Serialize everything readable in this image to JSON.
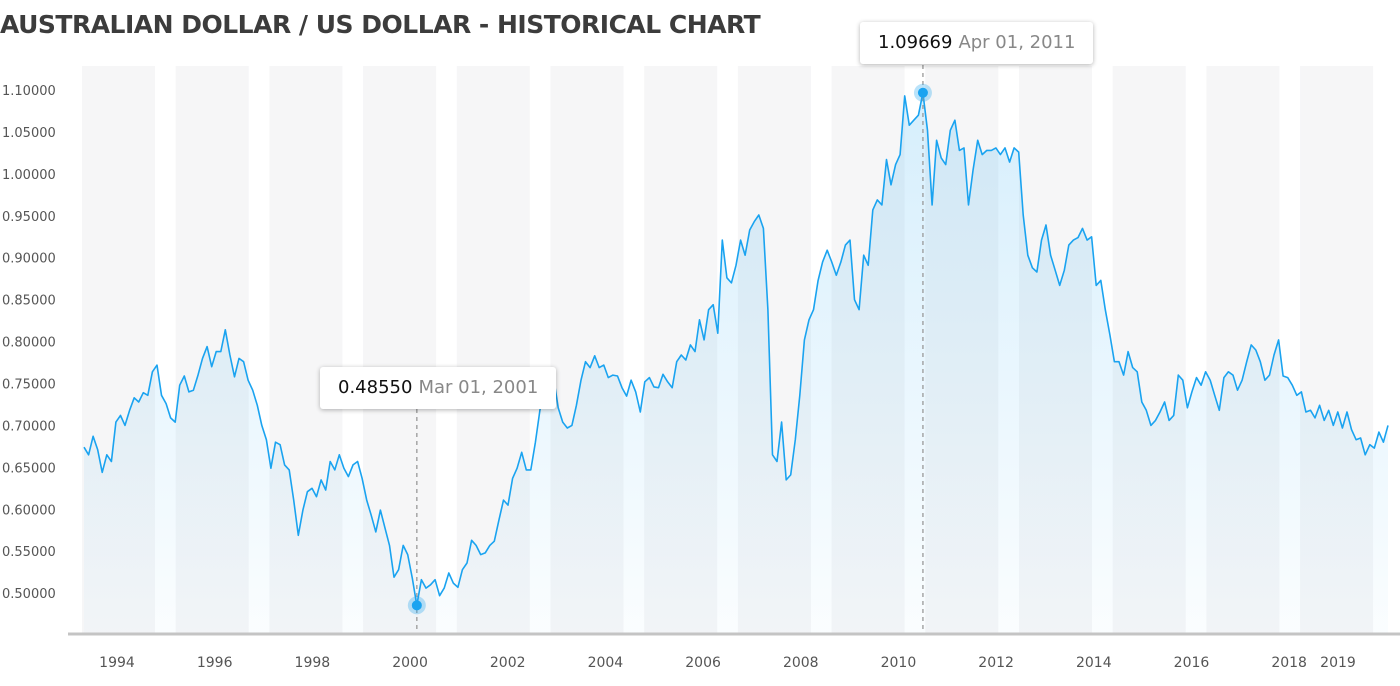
{
  "title": "AUSTRALIAN DOLLAR / US DOLLAR - HISTORICAL CHART",
  "chart_data": {
    "type": "area",
    "title": "AUSTRALIAN DOLLAR / US DOLLAR - HISTORICAL CHART",
    "xlabel": "",
    "ylabel": "",
    "x_range": [
      "1993-07",
      "2019-06"
    ],
    "x_ticks": [
      "1994",
      "1996",
      "1998",
      "2000",
      "2002",
      "2004",
      "2006",
      "2008",
      "2010",
      "2012",
      "2014",
      "2016",
      "2018",
      "2019"
    ],
    "y_ticks": [
      "0.50000",
      "0.55000",
      "0.60000",
      "0.65000",
      "0.70000",
      "0.75000",
      "0.80000",
      "0.85000",
      "0.90000",
      "0.95000",
      "1.00000",
      "1.05000",
      "1.10000"
    ],
    "ylim": [
      0.47,
      1.13
    ],
    "grid": false,
    "line_color": "#1aa3f0",
    "series": [
      {
        "values": [
          0.674,
          0.665,
          0.687,
          0.671,
          0.644,
          0.665,
          0.657,
          0.704,
          0.712,
          0.7,
          0.718,
          0.733,
          0.728,
          0.739,
          0.736,
          0.764,
          0.772,
          0.736,
          0.726,
          0.709,
          0.704,
          0.748,
          0.759,
          0.74,
          0.742,
          0.76,
          0.78,
          0.794,
          0.77,
          0.788,
          0.788,
          0.814,
          0.784,
          0.758,
          0.78,
          0.776,
          0.754,
          0.742,
          0.724,
          0.7,
          0.683,
          0.649,
          0.68,
          0.677,
          0.653,
          0.647,
          0.611,
          0.569,
          0.599,
          0.621,
          0.625,
          0.615,
          0.635,
          0.623,
          0.657,
          0.647,
          0.665,
          0.649,
          0.639,
          0.653,
          0.657,
          0.637,
          0.611,
          0.593,
          0.573,
          0.599,
          0.578,
          0.557,
          0.519,
          0.528,
          0.557,
          0.546,
          0.518,
          0.4855,
          0.516,
          0.506,
          0.51,
          0.516,
          0.497,
          0.506,
          0.524,
          0.512,
          0.507,
          0.528,
          0.536,
          0.563,
          0.557,
          0.546,
          0.548,
          0.557,
          0.562,
          0.587,
          0.611,
          0.605,
          0.637,
          0.649,
          0.668,
          0.647,
          0.647,
          0.68,
          0.718,
          0.748,
          0.766,
          0.757,
          0.721,
          0.704,
          0.697,
          0.7,
          0.724,
          0.754,
          0.776,
          0.769,
          0.783,
          0.769,
          0.772,
          0.757,
          0.76,
          0.759,
          0.745,
          0.735,
          0.754,
          0.74,
          0.716,
          0.752,
          0.757,
          0.746,
          0.745,
          0.761,
          0.752,
          0.745,
          0.776,
          0.784,
          0.778,
          0.796,
          0.788,
          0.826,
          0.802,
          0.838,
          0.844,
          0.81,
          0.921,
          0.876,
          0.87,
          0.891,
          0.921,
          0.903,
          0.933,
          0.943,
          0.951,
          0.935,
          0.838,
          0.665,
          0.657,
          0.704,
          0.635,
          0.641,
          0.683,
          0.736,
          0.802,
          0.826,
          0.838,
          0.873,
          0.895,
          0.909,
          0.895,
          0.879,
          0.895,
          0.915,
          0.921,
          0.85,
          0.838,
          0.903,
          0.891,
          0.957,
          0.969,
          0.963,
          1.017,
          0.987,
          1.011,
          1.023,
          1.093,
          1.058,
          1.064,
          1.07,
          1.09669,
          1.052,
          0.963,
          1.04,
          1.019,
          1.011,
          1.052,
          1.064,
          1.028,
          1.031,
          0.963,
          1.005,
          1.04,
          1.023,
          1.028,
          1.028,
          1.031,
          1.023,
          1.031,
          1.014,
          1.031,
          1.026,
          0.951,
          0.903,
          0.888,
          0.883,
          0.921,
          0.939,
          0.903,
          0.885,
          0.867,
          0.885,
          0.915,
          0.921,
          0.924,
          0.935,
          0.921,
          0.925,
          0.867,
          0.873,
          0.838,
          0.808,
          0.776,
          0.776,
          0.76,
          0.788,
          0.769,
          0.764,
          0.728,
          0.718,
          0.7,
          0.706,
          0.716,
          0.728,
          0.706,
          0.712,
          0.76,
          0.754,
          0.721,
          0.74,
          0.757,
          0.748,
          0.764,
          0.754,
          0.736,
          0.718,
          0.757,
          0.764,
          0.76,
          0.742,
          0.754,
          0.776,
          0.796,
          0.79,
          0.776,
          0.754,
          0.76,
          0.784,
          0.802,
          0.759,
          0.757,
          0.748,
          0.736,
          0.74,
          0.716,
          0.718,
          0.709,
          0.724,
          0.706,
          0.718,
          0.7,
          0.716,
          0.697,
          0.716,
          0.695,
          0.683,
          0.685,
          0.665,
          0.677,
          0.673,
          0.692,
          0.68,
          0.7
        ]
      }
    ],
    "annotations": [
      {
        "value": "0.48550",
        "date": "Mar 01, 2001",
        "label": "low"
      },
      {
        "value": "1.09669",
        "date": "Apr 01, 2011",
        "label": "high"
      }
    ]
  }
}
